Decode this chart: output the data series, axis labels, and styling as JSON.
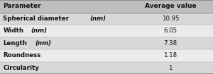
{
  "headers": [
    "Parameter",
    "Average value"
  ],
  "rows": [
    [
      "Spherical diameter (nm)",
      "10.95"
    ],
    [
      "Width (nm)",
      "6.05"
    ],
    [
      "Length (nm)",
      "7.38"
    ],
    [
      "Roundness",
      "1.18"
    ],
    [
      "Circularity",
      "1"
    ]
  ],
  "rows_base": [
    "Spherical diameter",
    "Width",
    "Length"
  ],
  "header_bg": "#bebebe",
  "row_bg_dark": "#d8d8d8",
  "row_bg_light": "#ebebeb",
  "border_color": "#888888",
  "header_font_size": 6.5,
  "row_font_size": 6.2,
  "col_split": 0.6,
  "outer_bg": "#d0d0d0",
  "text_color": "#111111"
}
